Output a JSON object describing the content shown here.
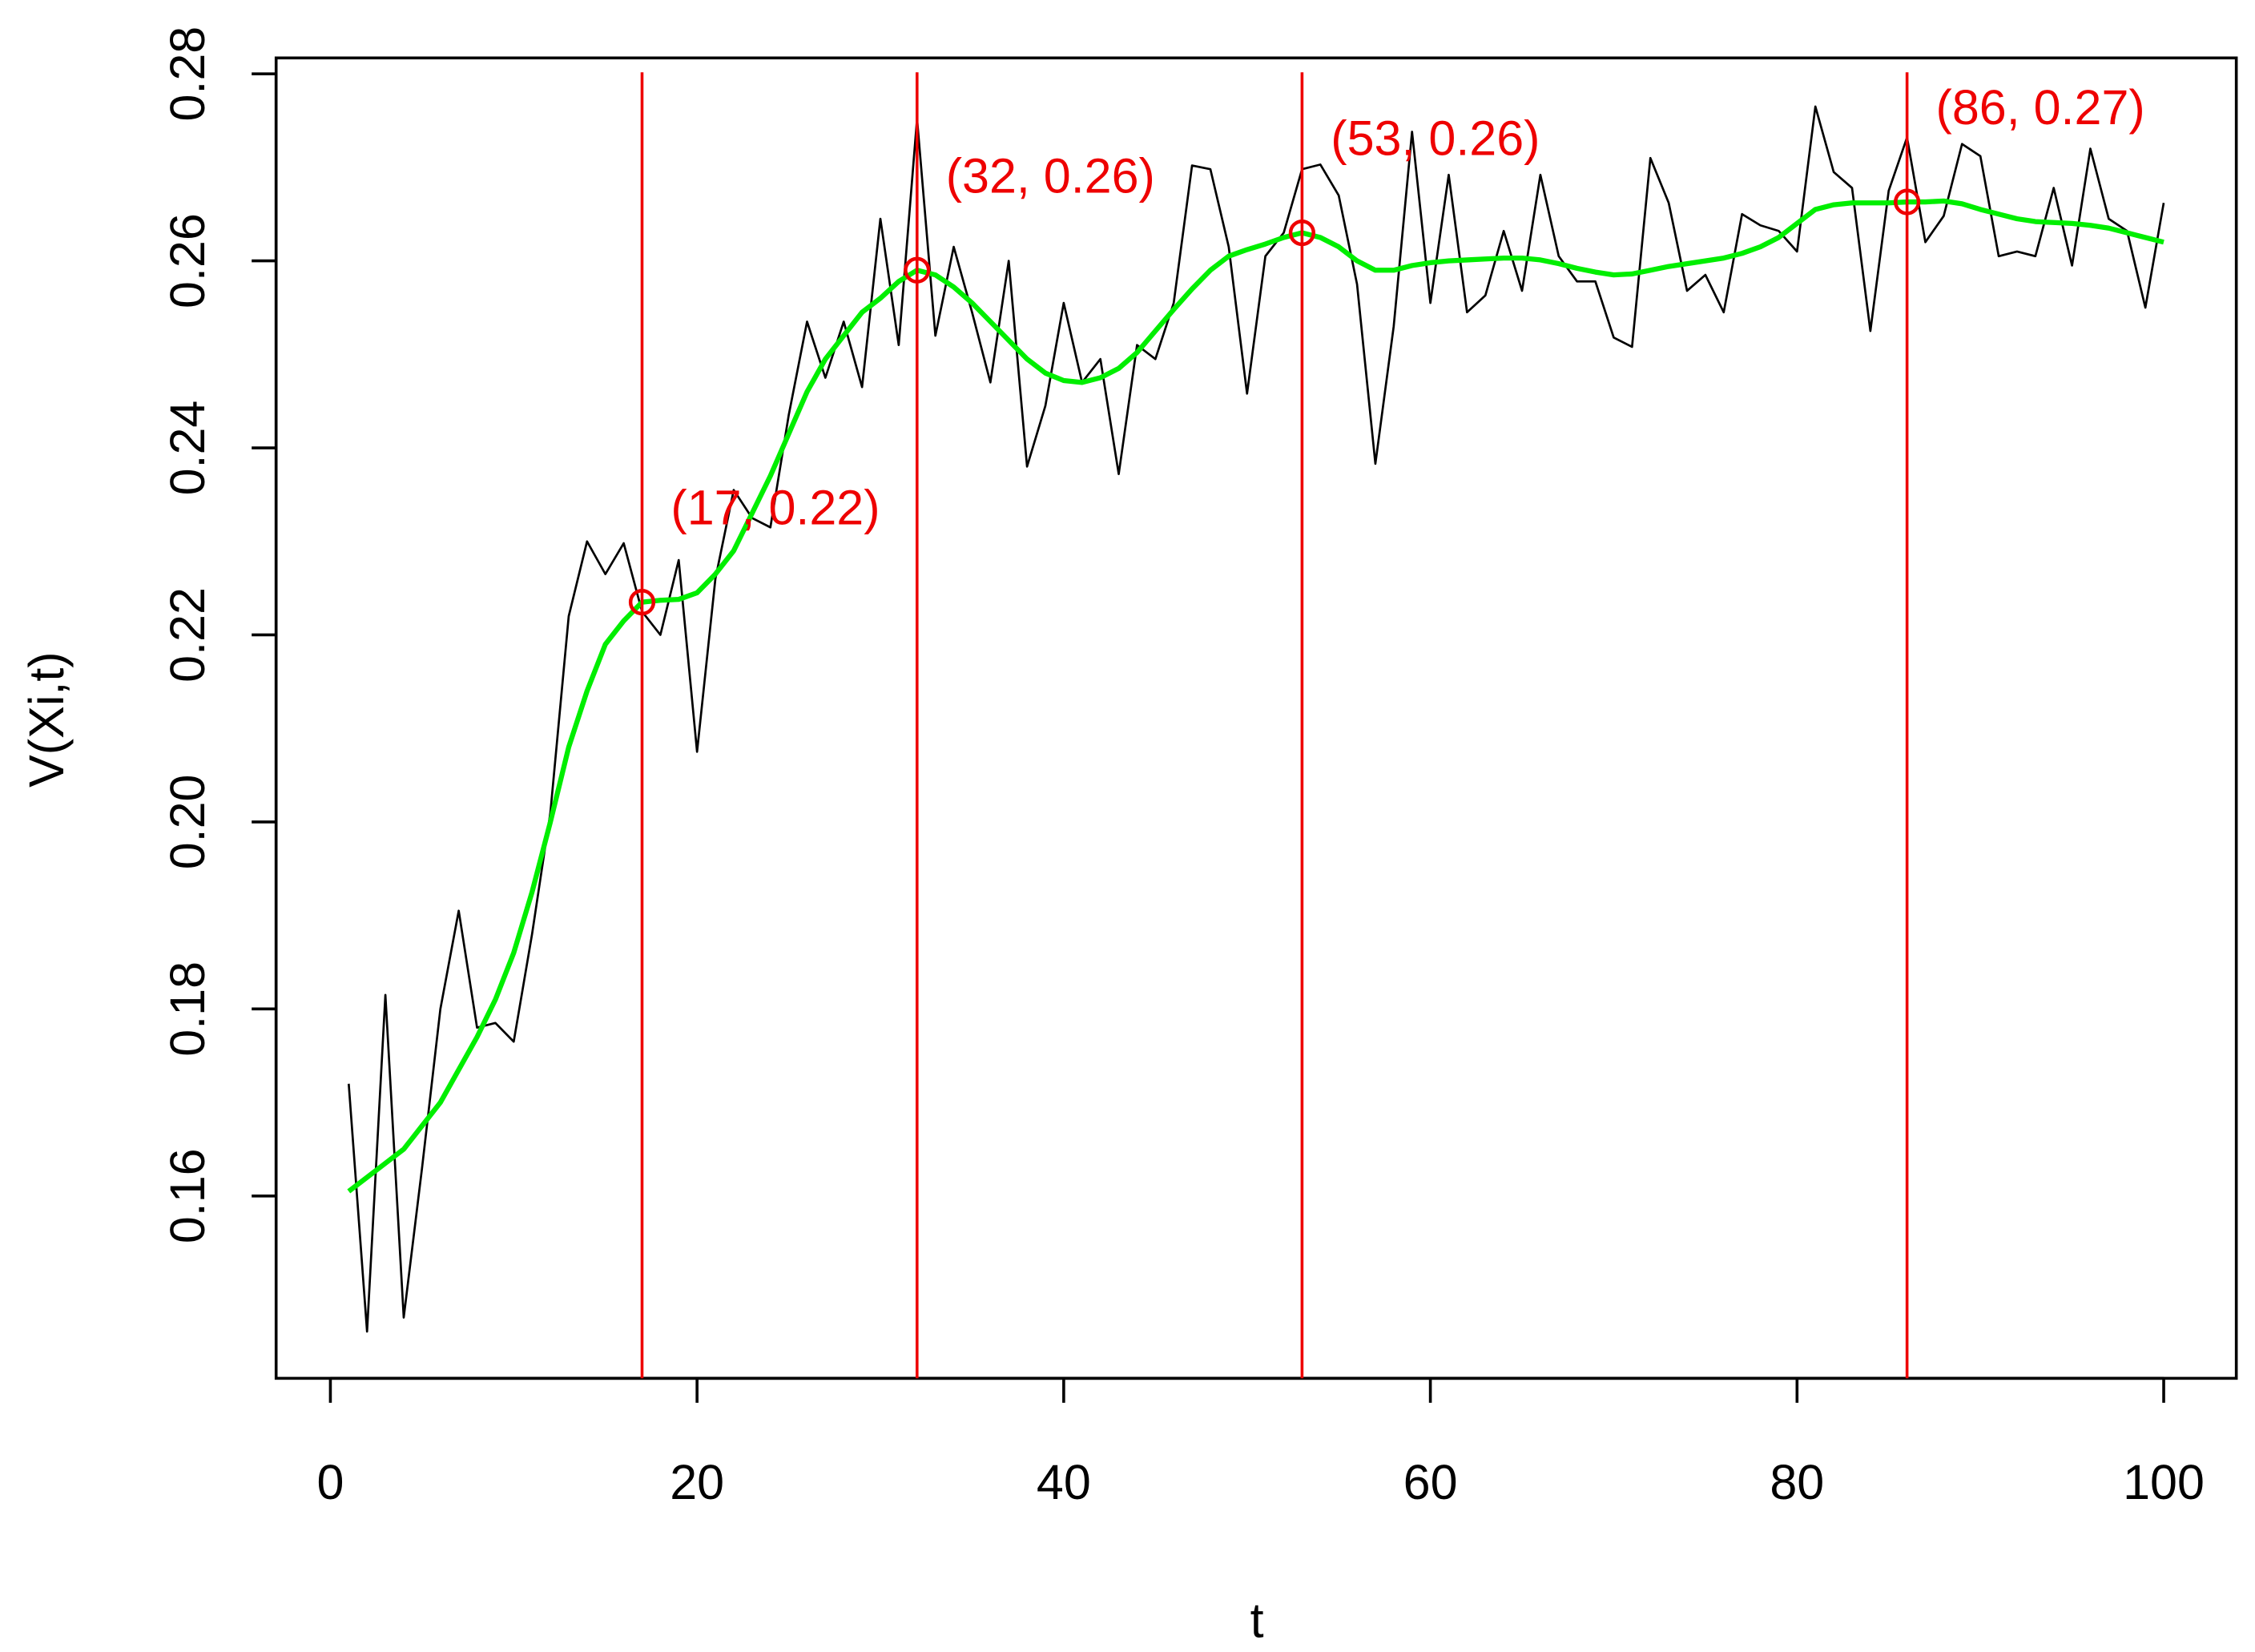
{
  "chart_data": {
    "type": "line",
    "xlabel": "t",
    "ylabel": "V(Xi,t)",
    "x": [
      1,
      2,
      3,
      4,
      5,
      6,
      7,
      8,
      9,
      10,
      11,
      12,
      13,
      14,
      15,
      16,
      17,
      18,
      19,
      20,
      21,
      22,
      23,
      24,
      25,
      26,
      27,
      28,
      29,
      30,
      31,
      32,
      33,
      34,
      35,
      36,
      37,
      38,
      39,
      40,
      41,
      42,
      43,
      44,
      45,
      46,
      47,
      48,
      49,
      50,
      51,
      52,
      53,
      54,
      55,
      56,
      57,
      58,
      59,
      60,
      61,
      62,
      63,
      64,
      65,
      66,
      67,
      68,
      69,
      70,
      71,
      72,
      73,
      74,
      75,
      76,
      77,
      78,
      79,
      80,
      81,
      82,
      83,
      84,
      85,
      86,
      87,
      88,
      89,
      90,
      91,
      92,
      93,
      94,
      95,
      96,
      97,
      98,
      99,
      100
    ],
    "series": [
      {
        "color": "#000000",
        "width": 1.5,
        "values": [
          0.172,
          0.1455,
          0.1815,
          0.147,
          0.163,
          0.18,
          0.1905,
          0.178,
          0.1785,
          0.1765,
          0.188,
          0.201,
          0.222,
          0.23,
          0.2265,
          0.2298,
          0.2225,
          0.22,
          0.228,
          0.2075,
          0.226,
          0.2355,
          0.2325,
          0.2315,
          0.2435,
          0.2535,
          0.2475,
          0.2535,
          0.2465,
          0.2645,
          0.251,
          0.2752,
          0.252,
          0.2615,
          0.2545,
          0.247,
          0.26,
          0.238,
          0.2445,
          0.2555,
          0.247,
          0.2495,
          0.2372,
          0.251,
          0.2495,
          0.2555,
          0.2702,
          0.2698,
          0.2615,
          0.2458,
          0.2605,
          0.263,
          0.2698,
          0.2703,
          0.267,
          0.2575,
          0.2383,
          0.253,
          0.2738,
          0.2555,
          0.2692,
          0.2545,
          0.2563,
          0.2632,
          0.2568,
          0.2692,
          0.2605,
          0.2578,
          0.2578,
          0.2518,
          0.2508,
          0.271,
          0.2662,
          0.2568,
          0.2585,
          0.2545,
          0.265,
          0.2638,
          0.2632,
          0.261,
          0.2765,
          0.2695,
          0.2678,
          0.2525,
          0.2675,
          0.2732,
          0.262,
          0.2648,
          0.2725,
          0.2712,
          0.2605,
          0.261,
          0.2605,
          0.2678,
          0.2595,
          0.272,
          0.2645,
          0.2632,
          0.255,
          0.2662
        ]
      },
      {
        "color": "#00ee00",
        "width": 3.5,
        "values": [
          0.1605,
          0.162,
          0.1635,
          0.165,
          0.1675,
          0.17,
          0.1735,
          0.177,
          0.181,
          0.186,
          0.1925,
          0.2,
          0.208,
          0.214,
          0.219,
          0.2215,
          0.2235,
          0.2237,
          0.2238,
          0.2245,
          0.2265,
          0.229,
          0.233,
          0.237,
          0.2415,
          0.246,
          0.2495,
          0.252,
          0.2545,
          0.256,
          0.2578,
          0.259,
          0.2585,
          0.2572,
          0.2555,
          0.2535,
          0.2515,
          0.2495,
          0.248,
          0.2472,
          0.247,
          0.2475,
          0.2485,
          0.2502,
          0.2525,
          0.2548,
          0.257,
          0.259,
          0.2605,
          0.2612,
          0.2618,
          0.2625,
          0.263,
          0.2625,
          0.2615,
          0.26,
          0.259,
          0.259,
          0.2595,
          0.2598,
          0.26,
          0.2601,
          0.2602,
          0.2603,
          0.2603,
          0.2601,
          0.2597,
          0.2592,
          0.2588,
          0.2585,
          0.2586,
          0.259,
          0.2594,
          0.2597,
          0.26,
          0.2603,
          0.2608,
          0.2615,
          0.2625,
          0.264,
          0.2655,
          0.266,
          0.2662,
          0.2662,
          0.2662,
          0.2663,
          0.2663,
          0.2664,
          0.2661,
          0.2655,
          0.265,
          0.2645,
          0.2642,
          0.2641,
          0.264,
          0.2638,
          0.2635,
          0.263,
          0.2625,
          0.262
        ]
      }
    ],
    "markers": [
      {
        "x": 17,
        "y": 0.2235,
        "label": "(17, 0.22)"
      },
      {
        "x": 32,
        "y": 0.259,
        "label": "(32, 0.26)"
      },
      {
        "x": 53,
        "y": 0.263,
        "label": "(53, 0.26)"
      },
      {
        "x": 86,
        "y": 0.2663,
        "label": "(86, 0.27)"
      }
    ],
    "marker_color": "#ee0000",
    "xlim": [
      -2.96,
      103.96
    ],
    "ylim": [
      0.1405,
      0.2817
    ],
    "xticks": [
      0,
      20,
      40,
      60,
      80,
      100
    ],
    "yticks": [
      0.16,
      0.18,
      {
        "value": 0.2,
        "label": "0.20"
      },
      0.22,
      0.24,
      0.26,
      0.28
    ]
  }
}
